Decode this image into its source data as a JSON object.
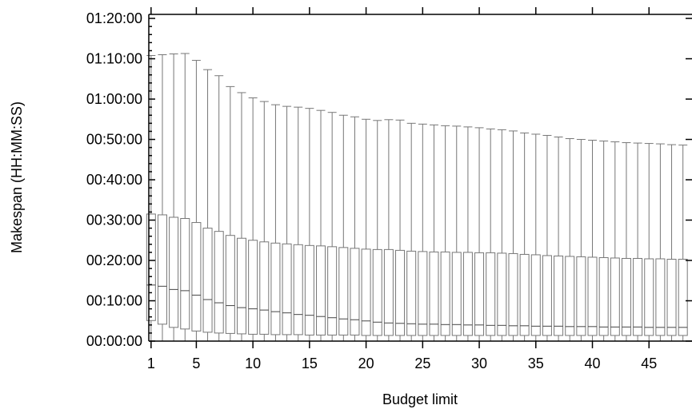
{
  "chart_data": {
    "type": "box",
    "xlabel": "Budget limit",
    "ylabel": "Makespan (HH:MM:SS)",
    "x_tick_labels": [
      "1",
      "5",
      "10",
      "15",
      "20",
      "25",
      "30",
      "35",
      "40",
      "45"
    ],
    "x_tick_values": [
      1,
      5,
      10,
      15,
      20,
      25,
      30,
      35,
      40,
      45
    ],
    "y_tick_labels": [
      "00:00:00",
      "00:10:00",
      "00:20:00",
      "00:30:00",
      "00:40:00",
      "00:50:00",
      "01:00:00",
      "01:10:00",
      "01:20:00"
    ],
    "y_tick_values_min": [
      0,
      10,
      20,
      30,
      40,
      50,
      60,
      70,
      80
    ],
    "xlim": [
      0.8,
      48.8
    ],
    "ylim_min": [
      0,
      81
    ],
    "grid": false,
    "legend": "none",
    "series_color": "#777777",
    "boxes": {
      "budget": [
        1,
        2,
        3,
        4,
        5,
        6,
        7,
        8,
        9,
        10,
        11,
        12,
        13,
        14,
        15,
        16,
        17,
        18,
        19,
        20,
        21,
        22,
        23,
        24,
        25,
        26,
        27,
        28,
        29,
        30,
        31,
        32,
        33,
        34,
        35,
        36,
        37,
        38,
        39,
        40,
        41,
        42,
        43,
        44,
        45,
        46,
        47,
        48
      ],
      "whisker_high_min": [
        70.8,
        71.0,
        71.2,
        71.3,
        69.6,
        67.3,
        65.8,
        63.1,
        61.6,
        60.3,
        59.4,
        58.6,
        58.2,
        58.0,
        57.7,
        57.2,
        56.7,
        56.0,
        55.6,
        55.0,
        54.7,
        54.9,
        54.8,
        54.0,
        53.8,
        53.6,
        53.4,
        53.3,
        53.1,
        52.9,
        52.6,
        52.4,
        52.1,
        51.6,
        51.3,
        51.0,
        50.6,
        50.2,
        50.0,
        49.8,
        49.6,
        49.4,
        49.2,
        49.1,
        49.0,
        48.9,
        48.7,
        48.6
      ],
      "q3_min": [
        31.5,
        31.3,
        30.7,
        30.4,
        29.4,
        28.0,
        27.2,
        26.2,
        25.5,
        25.0,
        24.6,
        24.3,
        24.1,
        23.9,
        23.7,
        23.6,
        23.4,
        23.2,
        23.0,
        22.8,
        22.7,
        22.7,
        22.5,
        22.3,
        22.2,
        22.1,
        22.1,
        22.0,
        22.0,
        21.9,
        21.9,
        21.8,
        21.7,
        21.5,
        21.4,
        21.2,
        21.1,
        21.0,
        20.9,
        20.8,
        20.7,
        20.6,
        20.5,
        20.5,
        20.4,
        20.4,
        20.3,
        20.3
      ],
      "median_min": [
        13.9,
        13.6,
        12.8,
        12.5,
        11.4,
        10.3,
        9.5,
        8.8,
        8.3,
        8.0,
        7.7,
        7.3,
        7.0,
        6.6,
        6.4,
        6.1,
        5.8,
        5.5,
        5.3,
        5.0,
        4.7,
        4.5,
        4.4,
        4.3,
        4.2,
        4.2,
        4.1,
        4.1,
        4.0,
        4.0,
        3.9,
        3.9,
        3.8,
        3.8,
        3.7,
        3.7,
        3.7,
        3.6,
        3.6,
        3.6,
        3.5,
        3.5,
        3.5,
        3.5,
        3.4,
        3.4,
        3.4,
        3.4
      ],
      "q1_min": [
        5.1,
        4.2,
        3.4,
        3.0,
        2.5,
        2.2,
        2.0,
        1.9,
        1.8,
        1.7,
        1.7,
        1.6,
        1.6,
        1.6,
        1.5,
        1.5,
        1.5,
        1.5,
        1.5,
        1.4,
        1.4,
        1.4,
        1.4,
        1.4,
        1.4,
        1.4,
        1.4,
        1.4,
        1.4,
        1.4,
        1.4,
        1.4,
        1.4,
        1.4,
        1.4,
        1.4,
        1.4,
        1.4,
        1.4,
        1.4,
        1.4,
        1.4,
        1.4,
        1.4,
        1.4,
        1.4,
        1.4,
        1.4
      ],
      "whisker_low_min": [
        0,
        0,
        0,
        0,
        0,
        0,
        0,
        0,
        0,
        0,
        0,
        0,
        0,
        0,
        0,
        0,
        0,
        0,
        0,
        0,
        0,
        0,
        0,
        0,
        0,
        0,
        0,
        0,
        0,
        0,
        0,
        0,
        0,
        0,
        0,
        0,
        0,
        0,
        0,
        0,
        0,
        0,
        0,
        0,
        0,
        0,
        0,
        0
      ]
    }
  }
}
